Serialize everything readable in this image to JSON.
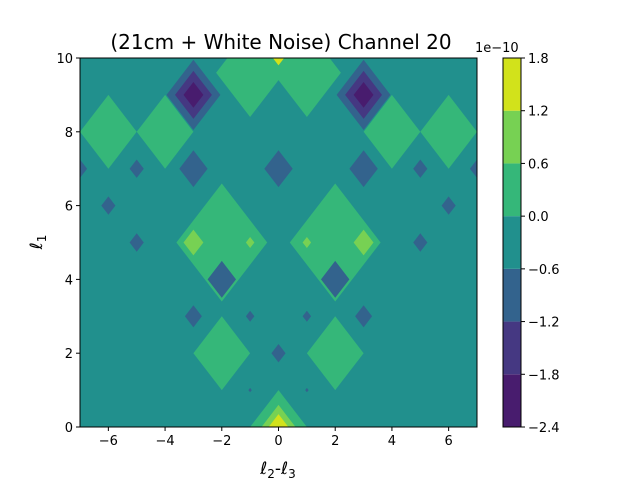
{
  "chart_data": {
    "type": "heatmap",
    "subtype": "filled-contour",
    "title": "(21cm + White Noise) Channel 20",
    "xlabel": {
      "base1": "ℓ",
      "sub1": "2",
      "sep": "-",
      "base2": "ℓ",
      "sub2": "3"
    },
    "ylabel": {
      "base": "ℓ",
      "sub": "1"
    },
    "xlim": [
      -7,
      7
    ],
    "ylim": [
      0,
      10
    ],
    "xticks": [
      "−6",
      "−4",
      "−2",
      "0",
      "2",
      "4",
      "6"
    ],
    "xtick_values": [
      -6,
      -4,
      -2,
      0,
      2,
      4,
      6
    ],
    "yticks": [
      "0",
      "2",
      "4",
      "6",
      "8",
      "10"
    ],
    "ytick_values": [
      0,
      2,
      4,
      6,
      8,
      10
    ],
    "colorbar": {
      "levels": [
        -2.4,
        -1.8,
        -1.2,
        -0.6,
        0.0,
        0.6,
        1.2,
        1.8
      ],
      "tick_labels": [
        "−2.4",
        "−1.8",
        "−1.2",
        "−0.6",
        "0.0",
        "0.6",
        "1.2",
        "1.8"
      ],
      "multiplier": "1e−10",
      "colors": [
        "#481c6e",
        "#453882",
        "#33638d",
        "#21908d",
        "#35b779",
        "#77d153",
        "#d2e21b"
      ]
    },
    "background_band": 3,
    "features": [
      {
        "x": -6,
        "y": 8,
        "r": 1.0,
        "band": 4
      },
      {
        "x": -4,
        "y": 8,
        "r": 1.0,
        "band": 4
      },
      {
        "x": 4,
        "y": 8,
        "r": 1.0,
        "band": 4
      },
      {
        "x": 6,
        "y": 8,
        "r": 1.0,
        "band": 4
      },
      {
        "x": -1,
        "y": 9.6,
        "r": 1.2,
        "band": 4
      },
      {
        "x": 1,
        "y": 9.6,
        "r": 1.2,
        "band": 4
      },
      {
        "x": 0,
        "y": 10,
        "r": 0.2,
        "band": 6
      },
      {
        "x": -2,
        "y": 5,
        "r": 1.6,
        "band": 4
      },
      {
        "x": 2,
        "y": 5,
        "r": 1.6,
        "band": 4
      },
      {
        "x": -3,
        "y": 5,
        "r": 0.35,
        "band": 5
      },
      {
        "x": 3,
        "y": 5,
        "r": 0.35,
        "band": 5
      },
      {
        "x": -1,
        "y": 5,
        "r": 0.15,
        "band": 5
      },
      {
        "x": 1,
        "y": 5,
        "r": 0.15,
        "band": 5
      },
      {
        "x": -2,
        "y": 2,
        "r": 1.0,
        "band": 4
      },
      {
        "x": 2,
        "y": 2,
        "r": 1.0,
        "band": 4
      },
      {
        "x": 0,
        "y": 0,
        "r": 1.0,
        "band": 4
      },
      {
        "x": 0,
        "y": 0,
        "r": 0.6,
        "band": 5
      },
      {
        "x": 0,
        "y": 0,
        "r": 0.35,
        "band": 6
      },
      {
        "x": -3,
        "y": 9,
        "r": 0.95,
        "band": 2
      },
      {
        "x": -3,
        "y": 9,
        "r": 0.65,
        "band": 1
      },
      {
        "x": -3,
        "y": 9,
        "r": 0.35,
        "band": 0
      },
      {
        "x": 3,
        "y": 9,
        "r": 0.95,
        "band": 2
      },
      {
        "x": 3,
        "y": 9,
        "r": 0.65,
        "band": 1
      },
      {
        "x": 3,
        "y": 9,
        "r": 0.35,
        "band": 0
      },
      {
        "x": 0,
        "y": 7,
        "r": 0.5,
        "band": 2
      },
      {
        "x": -3,
        "y": 7,
        "r": 0.5,
        "band": 2
      },
      {
        "x": 3,
        "y": 7,
        "r": 0.5,
        "band": 2
      },
      {
        "x": -5,
        "y": 7,
        "r": 0.25,
        "band": 2
      },
      {
        "x": 5,
        "y": 7,
        "r": 0.25,
        "band": 2
      },
      {
        "x": -7,
        "y": 7,
        "r": 0.25,
        "band": 2
      },
      {
        "x": 7,
        "y": 7,
        "r": 0.25,
        "band": 2
      },
      {
        "x": -6,
        "y": 6,
        "r": 0.25,
        "band": 2
      },
      {
        "x": 6,
        "y": 6,
        "r": 0.25,
        "band": 2
      },
      {
        "x": -5,
        "y": 5,
        "r": 0.25,
        "band": 2
      },
      {
        "x": 5,
        "y": 5,
        "r": 0.25,
        "band": 2
      },
      {
        "x": -2,
        "y": 4,
        "r": 0.5,
        "band": 2
      },
      {
        "x": 2,
        "y": 4,
        "r": 0.5,
        "band": 2
      },
      {
        "x": -3,
        "y": 3,
        "r": 0.3,
        "band": 2
      },
      {
        "x": 3,
        "y": 3,
        "r": 0.3,
        "band": 2
      },
      {
        "x": -1,
        "y": 3,
        "r": 0.15,
        "band": 2
      },
      {
        "x": 1,
        "y": 3,
        "r": 0.15,
        "band": 2
      },
      {
        "x": 0,
        "y": 2,
        "r": 0.25,
        "band": 2
      },
      {
        "x": -1,
        "y": 1,
        "r": 0.06,
        "band": 2
      },
      {
        "x": 1,
        "y": 1,
        "r": 0.06,
        "band": 2
      }
    ]
  }
}
